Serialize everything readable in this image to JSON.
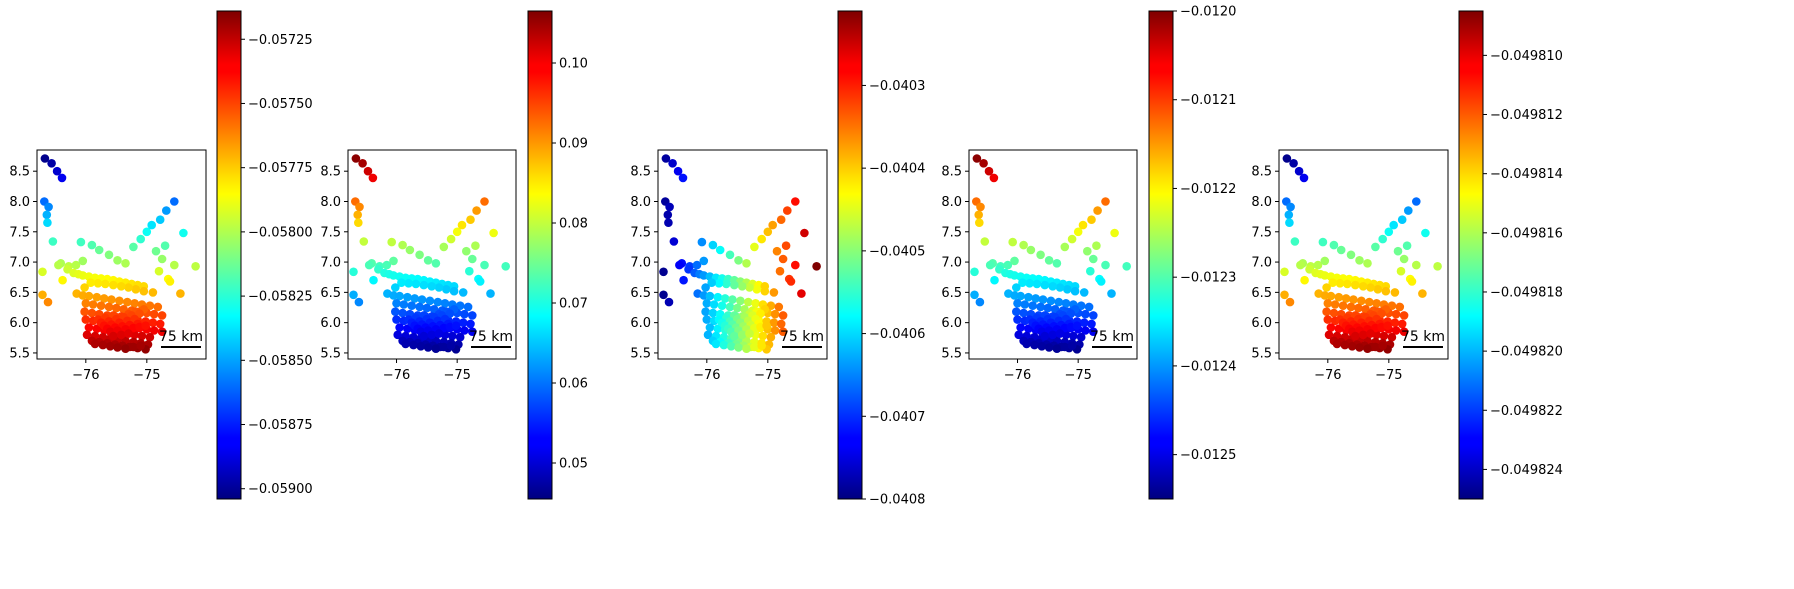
{
  "chart_data": [
    {
      "type": "scatter",
      "colormap": "jet",
      "x_ticks": [
        {
          "value": -76,
          "label": "−76"
        },
        {
          "value": -75,
          "label": "−75"
        }
      ],
      "y_ticks": [
        {
          "value": 5.5,
          "label": "5.5"
        },
        {
          "value": 6.0,
          "label": "6.0"
        },
        {
          "value": 6.5,
          "label": "6.5"
        },
        {
          "value": 7.0,
          "label": "7.0"
        },
        {
          "value": 7.5,
          "label": "7.5"
        },
        {
          "value": 8.0,
          "label": "8.0"
        },
        {
          "value": 8.5,
          "label": "8.5"
        }
      ],
      "xlim": [
        -76.8,
        -74.03
      ],
      "ylim": [
        5.4,
        8.85
      ],
      "scalebar": {
        "label": "75 km"
      },
      "color_field": "north_south",
      "colorbar": {
        "range": [
          -0.05904,
          -0.05714
        ],
        "ticks": [
          {
            "value": -0.05725,
            "label": "−0.05725"
          },
          {
            "value": -0.0575,
            "label": "−0.05750"
          },
          {
            "value": -0.05775,
            "label": "−0.05775"
          },
          {
            "value": -0.058,
            "label": "−0.05800"
          },
          {
            "value": -0.05825,
            "label": "−0.05825"
          },
          {
            "value": -0.0585,
            "label": "−0.05850"
          },
          {
            "value": -0.05875,
            "label": "−0.05875"
          },
          {
            "value": -0.059,
            "label": "−0.05900"
          }
        ]
      }
    },
    {
      "type": "scatter",
      "colormap": "jet",
      "x_ticks": [
        {
          "value": -76,
          "label": "−76"
        },
        {
          "value": -75,
          "label": "−75"
        }
      ],
      "y_ticks": [
        {
          "value": 5.5,
          "label": "5.5"
        },
        {
          "value": 6.0,
          "label": "6.0"
        },
        {
          "value": 6.5,
          "label": "6.5"
        },
        {
          "value": 7.0,
          "label": "7.0"
        },
        {
          "value": 7.5,
          "label": "7.5"
        },
        {
          "value": 8.0,
          "label": "8.0"
        },
        {
          "value": 8.5,
          "label": "8.5"
        }
      ],
      "xlim": [
        -76.8,
        -74.03
      ],
      "ylim": [
        5.4,
        8.85
      ],
      "scalebar": {
        "label": "75 km"
      },
      "color_field": "south_north",
      "colorbar": {
        "range": [
          0.0455,
          0.1065
        ],
        "ticks": [
          {
            "value": 0.1,
            "label": "0.10"
          },
          {
            "value": 0.09,
            "label": "0.09"
          },
          {
            "value": 0.08,
            "label": "0.08"
          },
          {
            "value": 0.07,
            "label": "0.07"
          },
          {
            "value": 0.06,
            "label": "0.06"
          },
          {
            "value": 0.05,
            "label": "0.05"
          }
        ]
      }
    },
    {
      "type": "scatter",
      "colormap": "jet",
      "x_ticks": [
        {
          "value": -76,
          "label": "−76"
        },
        {
          "value": -75,
          "label": "−75"
        }
      ],
      "y_ticks": [
        {
          "value": 5.5,
          "label": "5.5"
        },
        {
          "value": 6.0,
          "label": "6.0"
        },
        {
          "value": 6.5,
          "label": "6.5"
        },
        {
          "value": 7.0,
          "label": "7.0"
        },
        {
          "value": 7.5,
          "label": "7.5"
        },
        {
          "value": 8.0,
          "label": "8.0"
        },
        {
          "value": 8.5,
          "label": "8.5"
        }
      ],
      "xlim": [
        -76.8,
        -74.03
      ],
      "ylim": [
        5.4,
        8.85
      ],
      "scalebar": {
        "label": "75 km"
      },
      "color_field": "west_east",
      "colorbar": {
        "range": [
          -0.0408,
          -0.04021
        ],
        "ticks": [
          {
            "value": -0.0403,
            "label": "−0.0403"
          },
          {
            "value": -0.0404,
            "label": "−0.0404"
          },
          {
            "value": -0.0405,
            "label": "−0.0405"
          },
          {
            "value": -0.0406,
            "label": "−0.0406"
          },
          {
            "value": -0.0407,
            "label": "−0.0407"
          },
          {
            "value": -0.0408,
            "label": "−0.0408"
          }
        ]
      }
    },
    {
      "type": "scatter",
      "colormap": "jet",
      "x_ticks": [
        {
          "value": -76,
          "label": "−76"
        },
        {
          "value": -75,
          "label": "−75"
        }
      ],
      "y_ticks": [
        {
          "value": 5.5,
          "label": "5.5"
        },
        {
          "value": 6.0,
          "label": "6.0"
        },
        {
          "value": 6.5,
          "label": "6.5"
        },
        {
          "value": 7.0,
          "label": "7.0"
        },
        {
          "value": 7.5,
          "label": "7.5"
        },
        {
          "value": 8.0,
          "label": "8.0"
        },
        {
          "value": 8.5,
          "label": "8.5"
        }
      ],
      "xlim": [
        -76.8,
        -74.03
      ],
      "ylim": [
        5.4,
        8.85
      ],
      "scalebar": {
        "label": "75 km"
      },
      "color_field": "south_north",
      "colorbar": {
        "range": [
          -0.01255,
          -0.012
        ],
        "ticks": [
          {
            "value": -0.012,
            "label": "−0.0120"
          },
          {
            "value": -0.0121,
            "label": "−0.0121"
          },
          {
            "value": -0.0122,
            "label": "−0.0122"
          },
          {
            "value": -0.0123,
            "label": "−0.0123"
          },
          {
            "value": -0.0124,
            "label": "−0.0124"
          },
          {
            "value": -0.0125,
            "label": "−0.0125"
          }
        ]
      }
    },
    {
      "type": "scatter",
      "colormap": "jet",
      "x_ticks": [
        {
          "value": -76,
          "label": "−76"
        },
        {
          "value": -75,
          "label": "−75"
        }
      ],
      "y_ticks": [
        {
          "value": 5.5,
          "label": "5.5"
        },
        {
          "value": 6.0,
          "label": "6.0"
        },
        {
          "value": 6.5,
          "label": "6.5"
        },
        {
          "value": 7.0,
          "label": "7.0"
        },
        {
          "value": 7.5,
          "label": "7.5"
        },
        {
          "value": 8.0,
          "label": "8.0"
        },
        {
          "value": 8.5,
          "label": "8.5"
        }
      ],
      "xlim": [
        -76.8,
        -74.03
      ],
      "ylim": [
        5.4,
        8.85
      ],
      "scalebar": {
        "label": "75 km"
      },
      "color_field": "north_south",
      "colorbar": {
        "range": [
          -0.049825,
          -0.0498085
        ],
        "ticks": [
          {
            "value": -0.04981,
            "label": "−0.049810"
          },
          {
            "value": -0.049812,
            "label": "−0.049812"
          },
          {
            "value": -0.049814,
            "label": "−0.049814"
          },
          {
            "value": -0.049816,
            "label": "−0.049816"
          },
          {
            "value": -0.049818,
            "label": "−0.049818"
          },
          {
            "value": -0.04982,
            "label": "−0.049820"
          },
          {
            "value": -0.049822,
            "label": "−0.049822"
          },
          {
            "value": -0.049824,
            "label": "−0.049824"
          }
        ]
      }
    }
  ],
  "points": {
    "lon": [
      -76.67,
      -76.56,
      -76.47,
      -76.39,
      -76.68,
      -76.61,
      -76.64,
      -76.63,
      -76.54,
      -76.41,
      -76.71,
      -76.71,
      -76.62,
      -76.38,
      -76.28,
      -76.16,
      -76.05,
      -76.45,
      -76.3,
      -76.2,
      -76.12,
      -76.05,
      -75.95,
      -75.85,
      -75.75,
      -75.65,
      -75.55,
      -75.45,
      -75.35,
      -75.25,
      -75.15,
      -75.05,
      -76.08,
      -75.9,
      -75.78,
      -75.62,
      -75.48,
      -75.35,
      -75.22,
      -75.1,
      -75.0,
      -74.92,
      -74.78,
      -74.68,
      -74.55,
      -74.4,
      -74.2,
      -74.85,
      -74.7,
      -74.75,
      -74.55,
      -74.8,
      -74.65,
      -74.62,
      -74.45,
      -74.9,
      -75.05,
      -75.18,
      -75.3,
      -75.42,
      -75.55,
      -75.68,
      -75.8,
      -75.92,
      -76.02,
      -76.15,
      -76.05,
      -75.95,
      -75.82,
      -75.7,
      -75.58,
      -75.45,
      -75.32,
      -75.2,
      -75.08,
      -74.95,
      -74.82,
      -76.0,
      -75.88,
      -75.75,
      -75.62,
      -75.5,
      -75.38,
      -75.25,
      -75.12,
      -75.0,
      -74.88,
      -74.75,
      -76.02,
      -75.9,
      -75.78,
      -75.65,
      -75.52,
      -75.4,
      -75.28,
      -75.15,
      -75.02,
      -74.9,
      -74.78,
      -76.0,
      -75.88,
      -75.75,
      -75.62,
      -75.5,
      -75.38,
      -75.25,
      -75.12,
      -75.0,
      -74.88,
      -74.75,
      -75.95,
      -75.82,
      -75.7,
      -75.58,
      -75.45,
      -75.32,
      -75.2,
      -75.08,
      -74.95,
      -75.98,
      -75.85,
      -75.72,
      -75.6,
      -75.48,
      -75.35,
      -75.22,
      -75.1,
      -74.98,
      -75.9,
      -75.78,
      -75.65,
      -75.52,
      -75.4,
      -75.28,
      -75.15,
      -75.02,
      -75.85,
      -75.72,
      -75.6,
      -75.48,
      -75.35,
      -75.22,
      -75.1,
      -75.8,
      -75.68,
      -75.55,
      -75.42,
      -75.3,
      -75.18,
      -75.05,
      -75.75,
      -75.62,
      -75.5,
      -75.38,
      -75.25,
      -75.12,
      -75.7,
      -75.58,
      -75.45,
      -75.32,
      -75.2,
      -75.65,
      -75.52,
      -75.4,
      -75.28,
      -75.15,
      -75.6,
      -75.48,
      -75.35,
      -75.22,
      -75.12,
      -75.02,
      -75.55,
      -75.42,
      -75.3
    ],
    "lat": [
      8.71,
      8.63,
      8.5,
      8.39,
      8.0,
      7.91,
      7.78,
      7.65,
      7.34,
      6.98,
      6.84,
      6.46,
      6.34,
      6.7,
      6.93,
      6.95,
      7.02,
      6.95,
      6.88,
      6.82,
      6.8,
      6.78,
      6.76,
      6.74,
      6.73,
      6.72,
      6.7,
      6.68,
      6.66,
      6.64,
      6.62,
      6.6,
      7.33,
      7.28,
      7.2,
      7.12,
      7.03,
      6.98,
      7.25,
      7.38,
      7.5,
      7.61,
      7.7,
      7.85,
      8.0,
      7.48,
      6.93,
      7.18,
      7.27,
      7.05,
      6.95,
      6.85,
      6.72,
      6.68,
      6.48,
      6.5,
      6.52,
      6.55,
      6.58,
      6.6,
      6.62,
      6.64,
      6.65,
      6.66,
      6.58,
      6.48,
      6.45,
      6.44,
      6.42,
      6.4,
      6.38,
      6.36,
      6.34,
      6.32,
      6.3,
      6.28,
      6.26,
      6.32,
      6.3,
      6.28,
      6.26,
      6.24,
      6.22,
      6.2,
      6.18,
      6.16,
      6.14,
      6.12,
      6.18,
      6.16,
      6.14,
      6.12,
      6.1,
      6.08,
      6.06,
      6.04,
      6.02,
      6.0,
      5.98,
      6.05,
      6.03,
      6.01,
      5.99,
      5.97,
      5.95,
      5.93,
      5.91,
      5.89,
      5.87,
      5.85,
      5.92,
      5.9,
      5.88,
      5.86,
      5.84,
      5.82,
      5.8,
      5.78,
      5.76,
      5.8,
      5.78,
      5.76,
      5.74,
      5.72,
      5.7,
      5.68,
      5.66,
      5.64,
      5.7,
      5.68,
      5.66,
      5.64,
      5.62,
      5.6,
      5.58,
      5.56,
      5.65,
      5.63,
      5.61,
      5.59,
      5.57,
      5.6,
      5.62,
      6.05,
      6.08,
      6.12,
      6.1,
      6.14,
      6.18,
      6.22,
      6.0,
      6.02,
      6.06,
      6.09,
      6.12,
      6.15,
      5.95,
      5.97,
      6.0,
      6.03,
      6.06,
      5.9,
      5.92,
      5.94,
      5.96,
      5.98,
      5.85,
      5.87,
      5.89,
      5.91,
      5.93,
      5.95,
      5.78,
      5.8,
      5.82
    ],
    "values": {
      "north_south": [],
      "south_north": [],
      "west_east": []
    }
  }
}
